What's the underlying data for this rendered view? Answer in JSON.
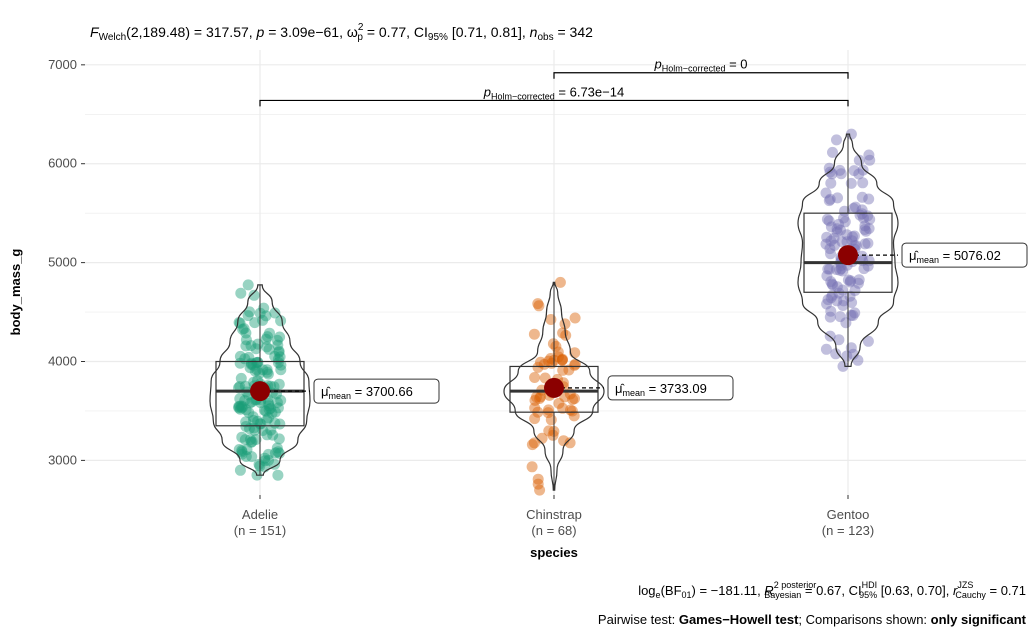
{
  "chart_data": {
    "type": "violin-box-scatter",
    "title": "F_Welch(2,189.48) = 317.57, p = 3.09e−61, ω̂²_p = 0.77, CI_95% [0.71, 0.81], n_obs = 342",
    "title_parts": {
      "f_sym": "F",
      "f_sub": "Welch",
      "f_args": "(2,189.48) = 317.57, ",
      "p_sym": "p",
      "p_val": " = 3.09e−61, ",
      "omega_sym": "ω",
      "omega_sup": "2",
      "omega_sub": "p",
      "omega_val": " = 0.77, CI",
      "ci_sub": "95%",
      "ci_val": " [0.71, 0.81], ",
      "n_sym": "n",
      "n_sub": "obs",
      "n_val": " = 342"
    },
    "xlabel": "species",
    "ylabel": "body_mass_g",
    "ylim": [
      2650,
      7150
    ],
    "yticks": [
      3000,
      4000,
      5000,
      6000,
      7000
    ],
    "ytick_labels": [
      "3000",
      "4000",
      "5000",
      "6000",
      "7000"
    ],
    "grid": true,
    "categories": [
      "Adelie",
      "Chinstrap",
      "Gentoo"
    ],
    "category_counts": [
      "(n = 151)",
      "(n = 68)",
      "(n = 123)"
    ],
    "colors": [
      "#1b9e77",
      "#d95f02",
      "#7570b3"
    ],
    "mean_color": "#8b0000",
    "groups": [
      {
        "name": "Adelie",
        "n": 151,
        "min": 2850,
        "q1": 3350,
        "median": 3700,
        "q3": 4000,
        "max": 4775,
        "mean": 3700.66,
        "mean_label_sym": "μ̂",
        "mean_label_sub": "mean",
        "mean_label_val": " = 3700.66",
        "violin": [
          [
            2850,
            0.03
          ],
          [
            3000,
            0.18
          ],
          [
            3200,
            0.34
          ],
          [
            3400,
            0.42
          ],
          [
            3600,
            0.45
          ],
          [
            3800,
            0.44
          ],
          [
            4000,
            0.36
          ],
          [
            4200,
            0.27
          ],
          [
            4400,
            0.2
          ],
          [
            4600,
            0.11
          ],
          [
            4775,
            0.02
          ]
        ]
      },
      {
        "name": "Chinstrap",
        "n": 68,
        "min": 2700,
        "q1": 3487.5,
        "median": 3700,
        "q3": 3950,
        "max": 4800,
        "mean": 3733.09,
        "mean_label_sym": "μ̂",
        "mean_label_sub": "mean",
        "mean_label_val": " = 3733.09",
        "violin": [
          [
            2700,
            0.01
          ],
          [
            2900,
            0.04
          ],
          [
            3100,
            0.12
          ],
          [
            3300,
            0.27
          ],
          [
            3500,
            0.52
          ],
          [
            3700,
            0.67
          ],
          [
            3900,
            0.48
          ],
          [
            4100,
            0.22
          ],
          [
            4300,
            0.15
          ],
          [
            4500,
            0.1
          ],
          [
            4700,
            0.05
          ],
          [
            4800,
            0.01
          ]
        ]
      },
      {
        "name": "Gentoo",
        "n": 123,
        "min": 3950,
        "q1": 4700,
        "median": 5000,
        "q3": 5500,
        "max": 6300,
        "mean": 5076.02,
        "mean_label_sym": "μ̂",
        "mean_label_sub": "mean",
        "mean_label_val": " = 5076.02",
        "violin": [
          [
            3950,
            0.02
          ],
          [
            4150,
            0.08
          ],
          [
            4400,
            0.2
          ],
          [
            4600,
            0.3
          ],
          [
            4800,
            0.33
          ],
          [
            5000,
            0.31
          ],
          [
            5200,
            0.3
          ],
          [
            5400,
            0.33
          ],
          [
            5600,
            0.3
          ],
          [
            5800,
            0.19
          ],
          [
            6000,
            0.09
          ],
          [
            6200,
            0.03
          ],
          [
            6300,
            0.01
          ]
        ]
      }
    ],
    "comparisons": [
      {
        "from": "Chinstrap",
        "to": "Gentoo",
        "y": 6920,
        "label_sym": "p",
        "label_sub": "Holm−corrected",
        "label_val": " = 0"
      },
      {
        "from": "Adelie",
        "to": "Gentoo",
        "y": 6640,
        "label_sym": "p",
        "label_sub": "Holm−corrected",
        "label_val": " = 6.73e−14"
      }
    ],
    "caption_parts": {
      "log_pre": "log",
      "log_sub": "e",
      "log_mid": "(BF",
      "bf_sub": "01",
      "log_val": ") = −181.11, ",
      "r_sym": "R",
      "r_sup": "2 posterior",
      "r_sub": "Bayesian",
      "r_val": " = 0.67, CI",
      "hdi_sup": "HDI",
      "hdi_sub": "95%",
      "hdi_val": " [0.63, 0.70], ",
      "rc_sym": "r",
      "rc_sup": "JZS",
      "rc_sub": "Cauchy",
      "rc_val": " = 0.71"
    },
    "footnote_parts": {
      "t1": "Pairwise test: ",
      "t2": "Games−Howell test",
      "t3": "; Comparisons shown: ",
      "t4": "only significant"
    }
  }
}
